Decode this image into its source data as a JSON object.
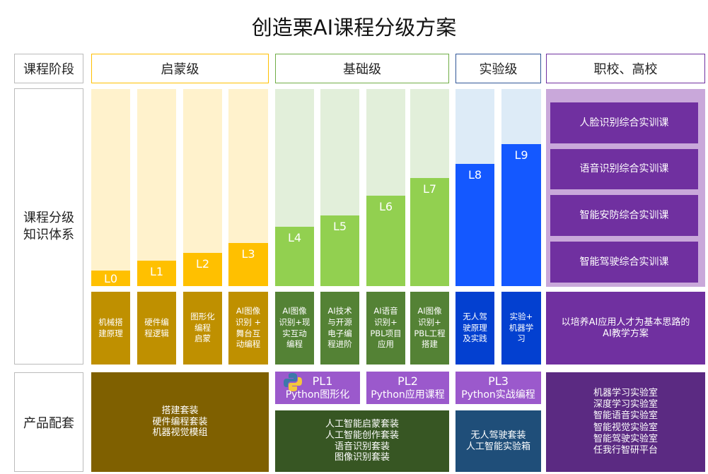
{
  "title": "创造栗AI课程分级方案",
  "row_labels": {
    "stage": "课程阶段",
    "knowledge": "课程分级\n知识体系",
    "products": "产品配套"
  },
  "stages": [
    {
      "label": "启蒙级",
      "color": "#FFC000"
    },
    {
      "label": "基础级",
      "color": "#70AD47"
    },
    {
      "label": "实验级",
      "color": "#2F5597"
    },
    {
      "label": "职校、高校",
      "color": "#7030A0"
    }
  ],
  "levels": [
    {
      "label": "L0",
      "fill": 0.08,
      "desc": "机械搭\n建原理"
    },
    {
      "label": "L1",
      "fill": 0.13,
      "desc": "硬件编\n程逻辑"
    },
    {
      "label": "L2",
      "fill": 0.17,
      "desc": "图形化\n编程\n启蒙"
    },
    {
      "label": "L3",
      "fill": 0.22,
      "desc": "AI图像\n识别 +\n舞台互\n动编程"
    },
    {
      "label": "L4",
      "fill": 0.3,
      "desc": "AI图像\n识别+现\n实互动\n编程"
    },
    {
      "label": "L5",
      "fill": 0.36,
      "desc": "AI技术\n与开源\n电子编\n程进阶"
    },
    {
      "label": "L6",
      "fill": 0.46,
      "desc": "AI语音\n识别+\nPBL项目\n应用"
    },
    {
      "label": "L7",
      "fill": 0.55,
      "desc": "AI图像\n识别+\nPBL工程\n搭建"
    },
    {
      "label": "L8",
      "fill": 0.62,
      "desc": "无人驾\n驶原理\n及实践"
    },
    {
      "label": "L9",
      "fill": 0.72,
      "desc": "实验+\n机器学\n习"
    }
  ],
  "colors": {
    "enlight": {
      "bg": "#FFF2CC",
      "fill": "#FFC000",
      "desc": "#BF9000"
    },
    "basic": {
      "bg": "#E2EFDA",
      "fill": "#92D050",
      "desc": "#548235"
    },
    "lab": {
      "bg": "#DDEBF7",
      "fill": "#1458FF",
      "desc": "#0340D0"
    },
    "college": {
      "bg": "#C9A8DA",
      "box": "#7030A0"
    }
  },
  "college_courses": [
    "人脸识别综合实训课",
    "语音识别综合实训课",
    "智能安防综合实训课",
    "智能驾驶综合实训课"
  ],
  "college_desc": "以培养AI应用人才为基本思路的\nAI教学方案",
  "python_levels": [
    {
      "name": "PL1",
      "sub": "Python图形化",
      "icon": "python-logo-icon"
    },
    {
      "name": "PL2",
      "sub": "Python应用课程"
    },
    {
      "name": "PL3",
      "sub": "Python实战编程"
    }
  ],
  "products": {
    "enlight": "搭建套装\n硬件编程套装\n机器视觉模组",
    "basic": "人工智能启蒙套装\n人工智能创作套装\n语音识别套装\n图像识别套装",
    "lab": "无人驾驶套装\n人工智能实验箱",
    "college": "机器学习实验室\n深度学习实验室\n智能语音实验室\n智能视觉实验室\n智能驾驶实验室\n任我行智研平台"
  }
}
